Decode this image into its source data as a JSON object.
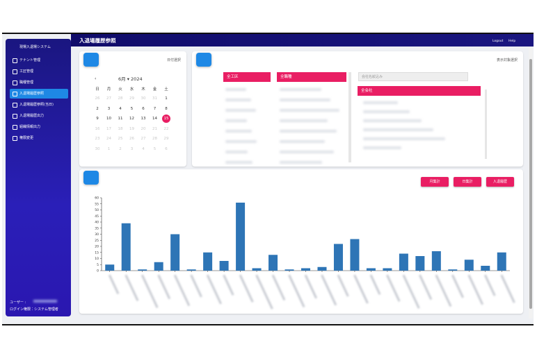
{
  "header": {
    "title": "入退場履歴参照",
    "logout": "Logout",
    "help": "Help"
  },
  "sidebar": {
    "app_name": "現場入退場システム",
    "items": [
      "テナント管理",
      "工区管理",
      "職種管理",
      "入退場履歴参照",
      "入退場履歴参照(当日)",
      "入退場履歴出力",
      "組織情報出力",
      "権限変更"
    ],
    "active": 3,
    "user_label": "ユーザー :",
    "role": "ログイン権限：システム管理者"
  },
  "calendar": {
    "label": "日付選択",
    "month": "6月",
    "year": "2024",
    "weekdays": [
      "日",
      "月",
      "火",
      "水",
      "木",
      "金",
      "土"
    ],
    "weeks": [
      [
        26,
        27,
        28,
        29,
        30,
        31,
        1
      ],
      [
        2,
        3,
        4,
        5,
        6,
        7,
        8
      ],
      [
        9,
        10,
        11,
        12,
        13,
        14,
        15
      ],
      [
        16,
        17,
        18,
        19,
        20,
        21,
        22
      ],
      [
        23,
        24,
        25,
        26,
        27,
        28,
        29
      ],
      [
        30,
        1,
        2,
        3,
        4,
        5,
        6
      ]
    ],
    "selected": 15
  },
  "search": {
    "label": "表示対象選択",
    "area_header": "全工区",
    "trade_header": "全職種",
    "company_filter": "会社名絞込み",
    "company_header": "全会社"
  },
  "buttons": [
    "月集計",
    "日集計",
    "入退履歴"
  ],
  "chart_data": {
    "type": "bar",
    "categories": [
      null,
      null,
      null,
      null,
      null,
      null,
      null,
      null,
      null,
      null,
      null,
      null,
      null,
      null,
      null,
      null,
      null,
      null,
      null,
      null,
      null,
      null,
      null,
      null,
      null
    ],
    "values": [
      5,
      39,
      1,
      7,
      30,
      1,
      15,
      8,
      56,
      2,
      13,
      1,
      2,
      3,
      22,
      26,
      2,
      2,
      14,
      12,
      16,
      1,
      9,
      4,
      15
    ],
    "color": "#2e75b6",
    "ylim": [
      0,
      60
    ],
    "yticks": [
      0,
      5,
      10,
      15,
      20,
      25,
      30,
      35,
      40,
      45,
      50,
      55,
      60
    ]
  }
}
